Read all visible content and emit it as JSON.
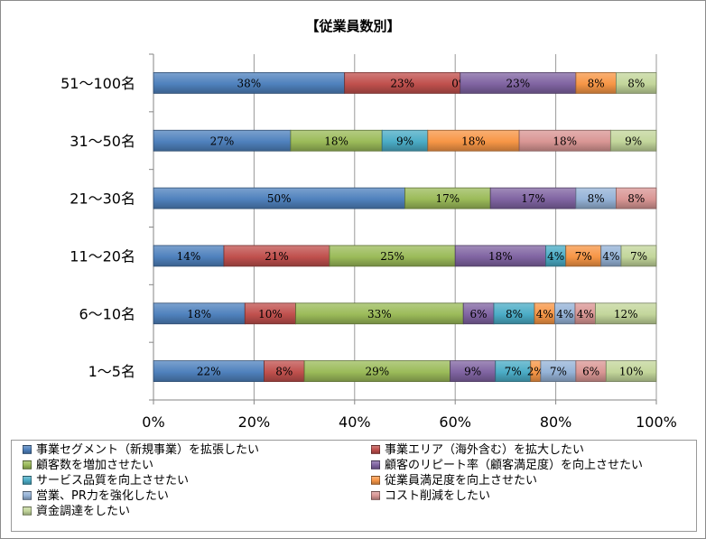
{
  "chart_data": {
    "type": "bar",
    "orientation": "horizontal",
    "stacked": "percent",
    "title": "【従業員数別】",
    "categories": [
      "51〜100名",
      "31〜50名",
      "21〜30名",
      "11〜20名",
      "6〜10名",
      "1〜5名"
    ],
    "xlim": [
      0,
      100
    ],
    "x_ticks": [
      "0%",
      "20%",
      "40%",
      "60%",
      "80%",
      "100%"
    ],
    "grid": true,
    "legend_position": "bottom",
    "series": [
      {
        "name": "事業セグメント（新規事業）を拡張したい",
        "color": "#4f81bd",
        "values": [
          38,
          27,
          50,
          14,
          18,
          22
        ],
        "labels": [
          "38%",
          "27%",
          "50%",
          "14%",
          "18%",
          "22%"
        ]
      },
      {
        "name": "事業エリア（海外含む）を拡大したい",
        "color": "#c0504d",
        "values": [
          23,
          0,
          0,
          21,
          10,
          8
        ],
        "labels": [
          "23%",
          "",
          "",
          "21%",
          "10%",
          "8%"
        ]
      },
      {
        "name": "顧客数を増加させたい",
        "color": "#9bbb59",
        "values": [
          0,
          18,
          17,
          25,
          33,
          29
        ],
        "labels": [
          "0%",
          "18%",
          "17%",
          "25%",
          "33%",
          "29%"
        ]
      },
      {
        "name": "顧客のリピート率（顧客満足度）を向上させたい",
        "color": "#8064a2",
        "values": [
          23,
          0,
          17,
          18,
          6,
          9
        ],
        "labels": [
          "23%",
          "",
          "17%",
          "18%",
          "6%",
          "9%"
        ]
      },
      {
        "name": "サービス品質を向上させたい",
        "color": "#4bacc6",
        "values": [
          0,
          9,
          0,
          4,
          8,
          7
        ],
        "labels": [
          "",
          "9%",
          "",
          "4%",
          "8%",
          "7%"
        ]
      },
      {
        "name": "従業員満足度を向上させたい",
        "color": "#f79646",
        "values": [
          8,
          18,
          0,
          7,
          4,
          2
        ],
        "labels": [
          "8%",
          "18%",
          "",
          "7%",
          "4%",
          "2%"
        ]
      },
      {
        "name": "営業、PR力を強化したい",
        "color": "#95b3d7",
        "values": [
          0,
          0,
          8,
          4,
          4,
          7
        ],
        "labels": [
          "",
          "",
          "8%",
          "4%",
          "4%",
          "7%"
        ]
      },
      {
        "name": "コスト削減をしたい",
        "color": "#d99694",
        "values": [
          0,
          18,
          8,
          0,
          4,
          6
        ],
        "labels": [
          "",
          "18%",
          "8%",
          "",
          "4%",
          "6%"
        ]
      },
      {
        "name": "資金調達をしたい",
        "color": "#c3d69b",
        "values": [
          8,
          9,
          0,
          7,
          12,
          10
        ],
        "labels": [
          "8%",
          "9%",
          "",
          "7%",
          "12%",
          "10%"
        ]
      }
    ]
  }
}
